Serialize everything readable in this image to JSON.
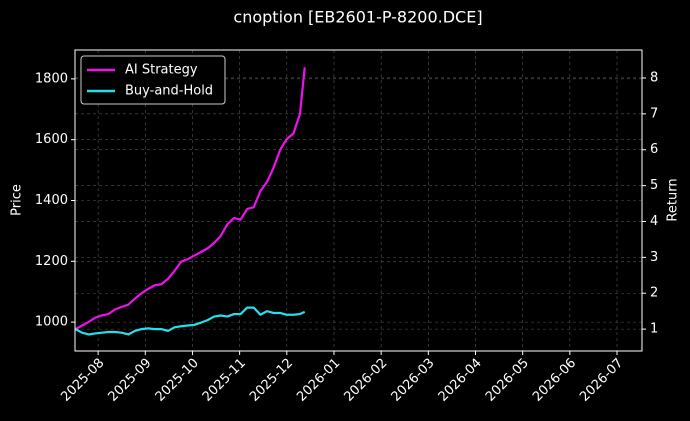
{
  "chart_data": {
    "type": "line",
    "title": "cnoption [EB2601-P-8200.DCE]",
    "ylabel": "Price",
    "y2label": "Return",
    "x": [
      -0.48,
      -0.34,
      -0.2,
      -0.06,
      0.08,
      0.22,
      0.36,
      0.5,
      0.64,
      0.78,
      0.92,
      1.06,
      1.2,
      1.34,
      1.48,
      1.62,
      1.76,
      1.9,
      2.04,
      2.18,
      2.32,
      2.46,
      2.6,
      2.74,
      2.88,
      3.02,
      3.16,
      3.3,
      3.44,
      3.58,
      3.72,
      3.86,
      4.0,
      4.14,
      4.28,
      4.38
    ],
    "xlim": [
      -0.49,
      11.53
    ],
    "xticks": [
      {
        "value": 0,
        "label": "2025-08"
      },
      {
        "value": 1,
        "label": "2025-09"
      },
      {
        "value": 2,
        "label": "2025-10"
      },
      {
        "value": 3,
        "label": "2025-11"
      },
      {
        "value": 4,
        "label": "2025-12"
      },
      {
        "value": 5,
        "label": "2026-01"
      },
      {
        "value": 6,
        "label": "2026-02"
      },
      {
        "value": 7,
        "label": "2026-03"
      },
      {
        "value": 8,
        "label": "2026-04"
      },
      {
        "value": 9,
        "label": "2026-05"
      },
      {
        "value": 10,
        "label": "2026-06"
      },
      {
        "value": 11,
        "label": "2026-07"
      }
    ],
    "ylim": [
      905,
      1895
    ],
    "yticks": [
      1000,
      1200,
      1400,
      1600,
      1800
    ],
    "y2lim": [
      0.39,
      8.78
    ],
    "y2ticks": [
      1,
      2,
      3,
      4,
      5,
      6,
      7,
      8
    ],
    "grid": true,
    "legend": "upper left",
    "series": [
      {
        "name": "AI Strategy",
        "color": "#ee11ee",
        "axis": "y2",
        "values": [
          1.0,
          1.1,
          1.2,
          1.32,
          1.38,
          1.42,
          1.55,
          1.62,
          1.68,
          1.85,
          2.0,
          2.12,
          2.22,
          2.25,
          2.4,
          2.62,
          2.88,
          2.95,
          3.05,
          3.15,
          3.25,
          3.4,
          3.6,
          3.92,
          4.1,
          4.05,
          4.35,
          4.4,
          4.85,
          5.1,
          5.5,
          6.0,
          6.3,
          6.45,
          7.0,
          8.3
        ]
      },
      {
        "name": "Buy-and-Hold",
        "color": "#22e0ee",
        "axis": "y2",
        "values": [
          1.0,
          0.9,
          0.85,
          0.88,
          0.9,
          0.92,
          0.92,
          0.9,
          0.85,
          0.95,
          1.0,
          1.02,
          1.0,
          1.0,
          0.95,
          1.05,
          1.08,
          1.1,
          1.12,
          1.18,
          1.25,
          1.35,
          1.38,
          1.35,
          1.42,
          1.42,
          1.6,
          1.6,
          1.4,
          1.5,
          1.45,
          1.45,
          1.4,
          1.4,
          1.42,
          1.48
        ]
      }
    ]
  }
}
